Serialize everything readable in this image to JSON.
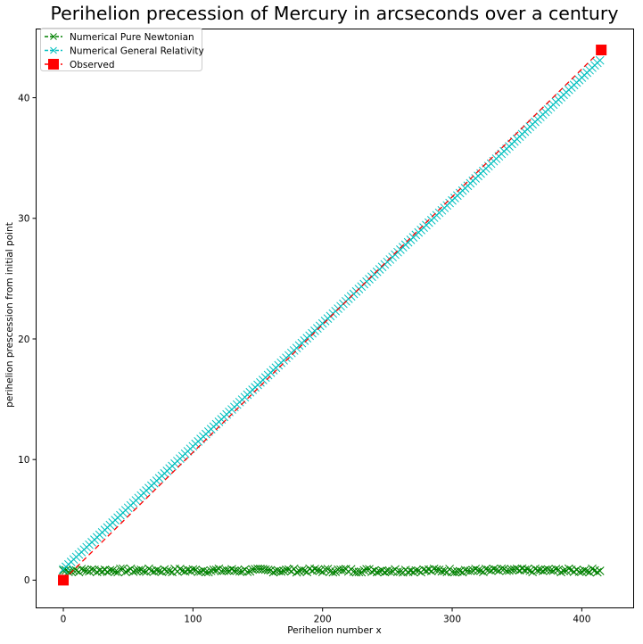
{
  "chart_data": {
    "type": "line",
    "title": "Perihelion precession of Mercury in arcseconds over a century",
    "xlabel": "Perihelion number x",
    "ylabel": "perihelion prescession from initial point",
    "xlim": [
      -21,
      440
    ],
    "ylim": [
      -2.3,
      45.7
    ],
    "xticks": [
      0,
      100,
      200,
      300,
      400
    ],
    "yticks": [
      0,
      10,
      20,
      30,
      40
    ],
    "grid": false,
    "legend_position": "upper-left",
    "series": [
      {
        "name": "Numerical Pure Newtonian",
        "color": "#008000",
        "linestyle": "dashed",
        "marker": "x",
        "x_start": 0,
        "x_end": 415,
        "x_step": 2,
        "y_mean": 0.8,
        "y_jitter": 0.15
      },
      {
        "name": "Numerical General Relativity",
        "color": "#00bfbf",
        "linestyle": "dashed",
        "marker": "x",
        "x_start": 0,
        "x_end": 415,
        "x_step": 2,
        "y_start": 0.9,
        "y_end": 43.2
      },
      {
        "name": "Observed",
        "color": "#ff0000",
        "linestyle": "dashed",
        "marker": "square",
        "x": [
          0,
          415
        ],
        "y": [
          0,
          43.96
        ]
      }
    ]
  }
}
